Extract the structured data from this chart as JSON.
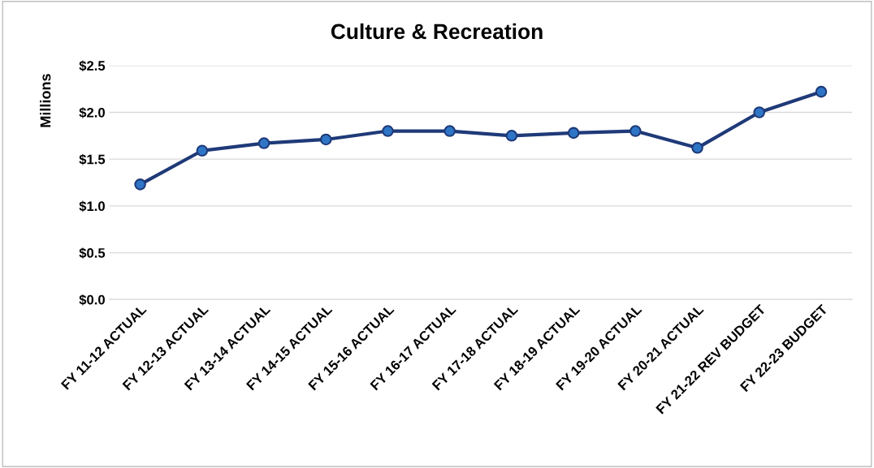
{
  "chart_data": {
    "type": "line",
    "title": "Culture & Recreation",
    "ylabel": "Millions",
    "categories": [
      "FY 11-12 ACTUAL",
      "FY 12-13 ACTUAL",
      "FY 13-14 ACTUAL",
      "FY 14-15 ACTUAL",
      "FY 15-16 ACTUAL",
      "FY 16-17 ACTUAL",
      "FY 17-18 ACTUAL",
      "FY 18-19 ACTUAL",
      "FY 19-20 ACTUAL",
      "FY 20-21 ACTUAL",
      "FY 21-22 REV BUDGET",
      "FY 22-23 BUDGET"
    ],
    "series": [
      {
        "color": "#1f3a78",
        "values": [
          1.23,
          1.59,
          1.67,
          1.71,
          1.8,
          1.8,
          1.75,
          1.78,
          1.8,
          1.62,
          2.0,
          2.22
        ]
      }
    ],
    "ylim": [
      0,
      2.5
    ],
    "yticks": [
      {
        "value": 0,
        "label": "$0.0"
      },
      {
        "value": 0.5,
        "label": "$0.5"
      },
      {
        "value": 1,
        "label": "$1.0"
      },
      {
        "value": 1.5,
        "label": "$1.5"
      },
      {
        "value": 2,
        "label": "$2.0"
      },
      {
        "value": 2.5,
        "label": "$2.5"
      }
    ],
    "grid": "y",
    "marker": "circle",
    "line_style": "solid"
  }
}
